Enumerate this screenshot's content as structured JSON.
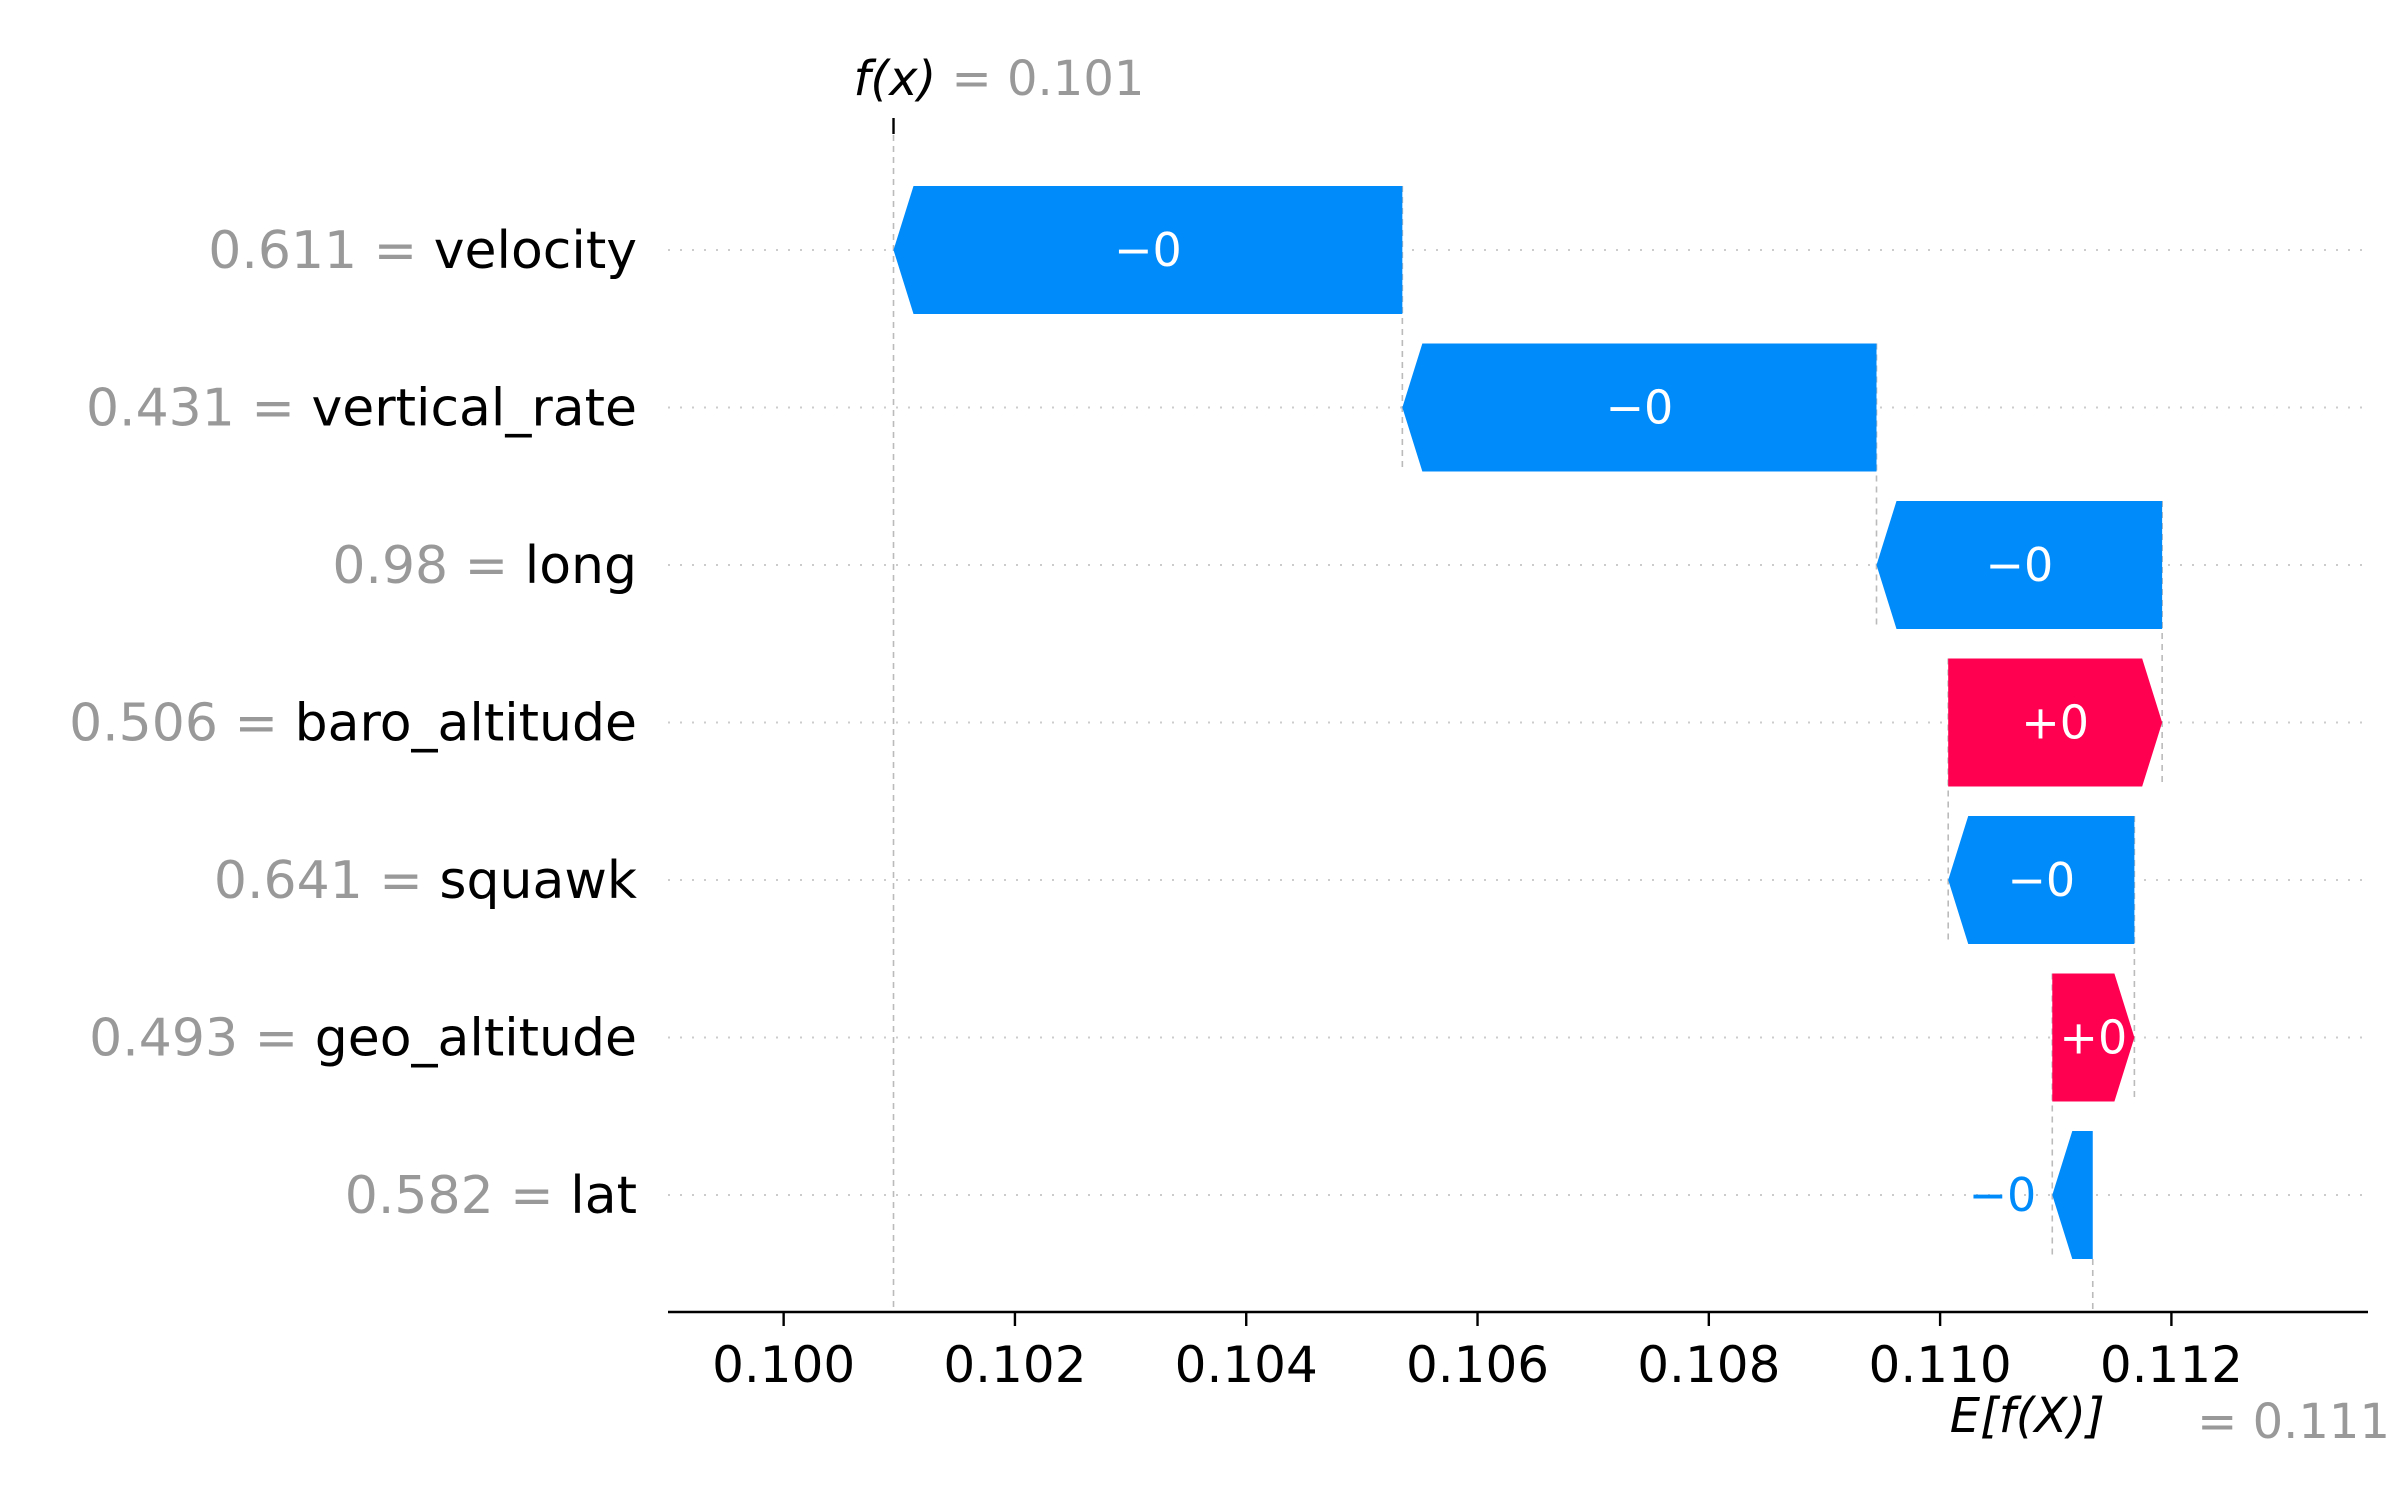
{
  "chart_data": {
    "type": "waterfall",
    "fx": {
      "label": "f(x)",
      "value_text": "= 0.101",
      "value": 0.10095
    },
    "efx": {
      "label": "E[f(X)]",
      "value_text": "= 0.111",
      "value": 0.11132
    },
    "xlim": [
      0.099,
      0.1137
    ],
    "xticks": [
      0.1,
      0.102,
      0.104,
      0.106,
      0.108,
      0.11,
      0.112
    ],
    "xtick_labels": [
      "0.100",
      "0.102",
      "0.104",
      "0.106",
      "0.108",
      "0.110",
      "0.112"
    ],
    "features": [
      {
        "feature_value": "0.611",
        "name": "velocity",
        "start": 0.10535,
        "end": 0.10095,
        "label": "−0",
        "sign": "neg"
      },
      {
        "feature_value": "0.431",
        "name": "vertical_rate",
        "start": 0.10945,
        "end": 0.10535,
        "label": "−0",
        "sign": "neg"
      },
      {
        "feature_value": "0.98",
        "name": "long",
        "start": 0.11192,
        "end": 0.10945,
        "label": "−0",
        "sign": "neg"
      },
      {
        "feature_value": "0.506",
        "name": "baro_altitude",
        "start": 0.11007,
        "end": 0.11192,
        "label": "+0",
        "sign": "pos"
      },
      {
        "feature_value": "0.641",
        "name": "squawk",
        "start": 0.11168,
        "end": 0.11007,
        "label": "−0",
        "sign": "neg"
      },
      {
        "feature_value": "0.493",
        "name": "geo_altitude",
        "start": 0.11097,
        "end": 0.11168,
        "label": "+0",
        "sign": "pos"
      },
      {
        "feature_value": "0.582",
        "name": "lat",
        "start": 0.11132,
        "end": 0.11097,
        "label": "−0",
        "sign": "neg"
      }
    ],
    "colors": {
      "negative": "#008bfb",
      "positive": "#ff0051",
      "neutral_text": "#999999"
    }
  }
}
